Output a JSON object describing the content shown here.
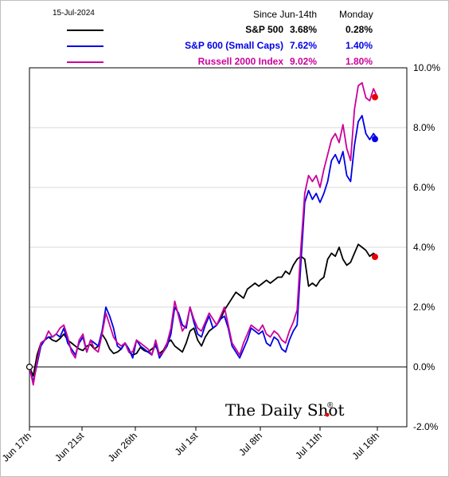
{
  "header": {
    "date": "15-Jul-2024",
    "col1": "Since Jun-14th",
    "col2": "Monday"
  },
  "legend": [
    {
      "name": "S&P 500",
      "since": "3.68%",
      "monday": "0.28%",
      "color": "#000000"
    },
    {
      "name": "S&P 600 (Small Caps)",
      "since": "7.62%",
      "monday": "1.40%",
      "color": "#0000e6"
    },
    {
      "name": "Russell 2000 Index",
      "since": "9.02%",
      "monday": "1.80%",
      "color": "#cc0099"
    }
  ],
  "brand": "The Daily Shot",
  "brand_mark": "®",
  "chart_data": {
    "type": "line",
    "x_ticks": [
      "Jun 17th",
      "Jun 21st",
      "Jun 26th",
      "Jul 1st",
      "Jul 8th",
      "Jul 11th",
      "Jul 16th"
    ],
    "y_ticks": [
      "-2.0%",
      "0.0%",
      "2.0%",
      "4.0%",
      "6.0%",
      "8.0%",
      "10.0%"
    ],
    "ylim": [
      -2,
      10
    ],
    "y_axis_side": "right",
    "grid": "horizontal",
    "series": [
      {
        "name": "S&P 500",
        "color": "#000000",
        "end_marker_color": "#e60000",
        "values": [
          0,
          -0.3,
          0.4,
          0.8,
          0.9,
          1.0,
          0.9,
          0.85,
          0.95,
          1.1,
          0.9,
          0.8,
          0.7,
          0.6,
          0.55,
          0.7,
          0.75,
          0.6,
          0.7,
          1.1,
          0.9,
          0.6,
          0.45,
          0.5,
          0.6,
          0.8,
          0.5,
          0.4,
          0.45,
          0.65,
          0.55,
          0.5,
          0.6,
          0.7,
          0.45,
          0.55,
          0.8,
          0.9,
          0.7,
          0.6,
          0.5,
          0.8,
          1.2,
          1.3,
          0.9,
          0.7,
          1.0,
          1.2,
          1.3,
          1.4,
          1.6,
          1.9,
          2.1,
          2.3,
          2.5,
          2.4,
          2.3,
          2.6,
          2.7,
          2.8,
          2.7,
          2.8,
          2.9,
          2.8,
          2.9,
          3.0,
          3.0,
          3.2,
          3.1,
          3.4,
          3.6,
          3.7,
          3.6,
          2.7,
          2.8,
          2.7,
          2.9,
          3.0,
          3.6,
          3.8,
          3.7,
          4.0,
          3.6,
          3.4,
          3.5,
          3.8,
          4.1,
          4.0,
          3.9,
          3.7,
          3.8,
          3.68
        ]
      },
      {
        "name": "S&P 600 (Small Caps)",
        "color": "#0000e6",
        "end_marker_color": "#0000e6",
        "values": [
          0,
          -0.5,
          0.1,
          0.7,
          0.9,
          1.0,
          1.0,
          1.1,
          1.0,
          1.3,
          0.8,
          0.6,
          0.4,
          0.8,
          1.0,
          0.5,
          0.9,
          0.8,
          0.7,
          1.2,
          2.0,
          1.7,
          1.3,
          0.7,
          0.6,
          0.8,
          0.6,
          0.3,
          0.9,
          0.7,
          0.6,
          0.5,
          0.4,
          0.8,
          0.3,
          0.5,
          0.7,
          1.1,
          2.0,
          1.8,
          1.4,
          1.3,
          2.0,
          1.5,
          1.1,
          1.0,
          1.4,
          1.7,
          1.3,
          1.4,
          1.6,
          1.7,
          1.3,
          0.7,
          0.5,
          0.3,
          0.6,
          0.9,
          1.3,
          1.2,
          1.1,
          1.2,
          0.8,
          0.7,
          1.0,
          0.9,
          0.6,
          0.5,
          0.9,
          1.2,
          1.4,
          3.5,
          5.5,
          5.9,
          5.6,
          5.8,
          5.5,
          5.8,
          6.2,
          6.9,
          7.1,
          6.8,
          7.2,
          6.4,
          6.2,
          7.4,
          8.2,
          8.4,
          7.8,
          7.6,
          7.8,
          7.62
        ]
      },
      {
        "name": "Russell 2000 Index",
        "color": "#cc0099",
        "end_marker_color": "#e60000",
        "values": [
          0,
          -0.6,
          0.2,
          0.8,
          0.9,
          1.2,
          1.0,
          1.1,
          1.3,
          1.4,
          1.0,
          0.5,
          0.3,
          0.9,
          1.1,
          0.5,
          0.9,
          0.6,
          0.5,
          1.1,
          1.8,
          1.4,
          1.0,
          0.8,
          0.7,
          0.8,
          0.5,
          0.5,
          0.9,
          0.8,
          0.7,
          0.6,
          0.4,
          0.9,
          0.4,
          0.5,
          0.8,
          1.3,
          2.2,
          1.7,
          1.2,
          1.4,
          2.0,
          1.6,
          1.3,
          1.2,
          1.5,
          1.8,
          1.6,
          1.4,
          1.7,
          2.0,
          1.4,
          0.8,
          0.6,
          0.4,
          0.8,
          1.1,
          1.4,
          1.3,
          1.2,
          1.4,
          1.1,
          1.0,
          1.2,
          1.1,
          0.9,
          0.8,
          1.2,
          1.5,
          1.9,
          4.0,
          5.8,
          6.4,
          6.2,
          6.4,
          6.0,
          6.6,
          7.1,
          7.6,
          7.8,
          7.5,
          8.1,
          7.3,
          6.9,
          8.6,
          9.4,
          9.5,
          9.0,
          8.9,
          9.3,
          9.02
        ]
      }
    ]
  }
}
